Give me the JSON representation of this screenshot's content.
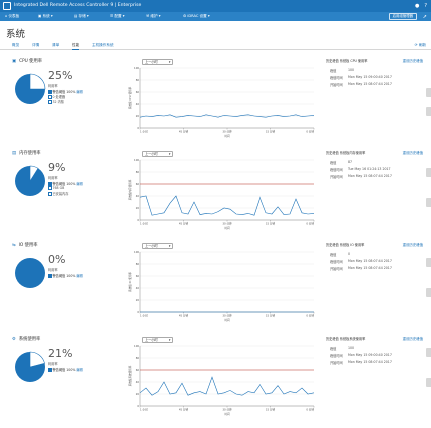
{
  "header": {
    "title": "Integrated Dell Remote Access Controller 9 | Enterprise",
    "icons": [
      "user-icon",
      "help-icon"
    ]
  },
  "menu": {
    "items": [
      "仪表板",
      "系统",
      "存储",
      "配置",
      "维护",
      "iDRAC 设置"
    ],
    "icons": [
      "home-icon",
      "system-icon",
      "storage-icon",
      "config-icon",
      "maintenance-icon",
      "settings-icon"
    ],
    "enable_group_manager": "启用组管理器",
    "pin": "pin-icon"
  },
  "page_title": "系统",
  "tabs": [
    "概览",
    "详情",
    "清单",
    "性能",
    "主机操作系统"
  ],
  "active_tab": "性能",
  "refresh_label": "刷新",
  "time_axis_label": "时间",
  "time_ticks": [
    "1 小时",
    "45 分钟",
    "30 分钟",
    "15 分钟",
    "0 分钟"
  ],
  "range_dropdown": "上一小时",
  "hist_labels": {
    "peak": "峰值",
    "peak_time": "峰值时间",
    "start_time": "开始时间"
  },
  "sections": [
    {
      "title": "CPU 使用率",
      "reset_label": "重设历史峰值",
      "percent": "25%",
      "percent_value": 25,
      "usage_label": "利用率",
      "warn_label": "警告阈值",
      "warn_value": "100%",
      "edit_label": "编辑",
      "legend": [
        "0 处理器",
        "32 内核"
      ],
      "y_axis": "系统板 CPU 使用率",
      "y_ticks": [
        "100",
        "80",
        "60",
        "40",
        "20",
        "0"
      ],
      "hist_title": "历史峰值 系统板 CPU 使用率",
      "peak": "100",
      "peak_time": "Mon May 15 09:00:40 2017",
      "start_time": "Mon May 15 08:07:44 2017",
      "has_threshold": false
    },
    {
      "title": "内存使用率",
      "reset_label": "重设历史峰值",
      "percent": "9%",
      "percent_value": 9,
      "usage_label": "利用率",
      "warn_label": "警告阈值",
      "warn_value": "100%",
      "edit_label": "编辑",
      "legend": [
        "768 GB",
        "已安装内存"
      ],
      "y_axis": "系统板内存使用率",
      "y_ticks": [
        "100",
        "80",
        "60",
        "40",
        "20",
        "0"
      ],
      "hist_title": "历史峰值 系统板内存使用率",
      "peak": "87",
      "peak_time": "Tue May 16 01:24:13 2017",
      "start_time": "Mon May 15 08:07:44 2017",
      "has_threshold": true
    },
    {
      "title": "IO 使用率",
      "reset_label": "重设历史峰值",
      "percent": "0%",
      "percent_value": 0,
      "usage_label": "利用率",
      "warn_label": "警告阈值",
      "warn_value": "100%",
      "edit_label": "编辑",
      "legend": [],
      "y_axis": "系统板 IO 使用率",
      "y_ticks": [
        "100",
        "80",
        "60",
        "40",
        "20",
        "0"
      ],
      "hist_title": "历史峰值 系统板 IO 使用率",
      "peak": "0",
      "peak_time": "Mon May 15 08:07:44 2017",
      "start_time": "Mon May 15 08:07:44 2017",
      "has_threshold": false
    },
    {
      "title": "系统使用率",
      "reset_label": "重设历史峰值",
      "percent": "21%",
      "percent_value": 21,
      "usage_label": "利用率",
      "warn_label": "警告阈值",
      "warn_value": "100%",
      "edit_label": "编辑",
      "legend": [],
      "y_axis": "系统板系统使用率",
      "y_ticks": [
        "100",
        "80",
        "60",
        "40",
        "20",
        "0"
      ],
      "hist_title": "历史峰值 系统板系统使用率",
      "peak": "100",
      "peak_time": "Mon May 15 09:00:40 2017",
      "start_time": "Mon May 15 08:07:44 2017",
      "has_threshold": true
    }
  ],
  "chart_data": [
    {
      "type": "line",
      "title": "CPU 使用率",
      "xlabel": "时间",
      "ylabel": "系统板 CPU 使用率",
      "x_ticks": [
        "1 小时",
        "45 分钟",
        "30 分钟",
        "15 分钟",
        "0 分钟"
      ],
      "ylim": [
        0,
        100
      ],
      "series": [
        {
          "name": "",
          "color": "#1d73b8",
          "values": [
            18,
            20,
            19,
            21,
            20,
            22,
            18,
            19,
            21,
            20,
            19,
            22,
            20,
            18,
            21,
            20,
            19,
            21,
            22,
            20,
            19,
            18,
            20,
            21,
            19,
            20,
            22,
            19,
            20,
            21
          ]
        }
      ]
    },
    {
      "type": "line",
      "title": "内存使用率",
      "xlabel": "时间",
      "ylabel": "系统板内存使用率",
      "x_ticks": [
        "1 小时",
        "45 分钟",
        "30 分钟",
        "15 分钟",
        "0 分钟"
      ],
      "ylim": [
        0,
        100
      ],
      "threshold": 60,
      "series": [
        {
          "name": "",
          "color": "#1d73b8",
          "values": [
            38,
            40,
            8,
            10,
            12,
            28,
            40,
            12,
            10,
            30,
            9,
            11,
            10,
            14,
            20,
            18,
            10,
            9,
            11,
            8,
            38,
            12,
            10,
            22,
            9,
            10,
            35,
            12,
            10,
            11
          ]
        }
      ]
    },
    {
      "type": "line",
      "title": "IO 使用率",
      "xlabel": "时间",
      "ylabel": "系统板 IO 使用率",
      "x_ticks": [
        "1 小时",
        "45 分钟",
        "30 分钟",
        "15 分钟",
        "0 分钟"
      ],
      "ylim": [
        0,
        100
      ],
      "series": [
        {
          "name": "",
          "color": "#1d73b8",
          "values": [
            0,
            0,
            0,
            0,
            0,
            0,
            0,
            0,
            0,
            0,
            0,
            0,
            0,
            0,
            0,
            0,
            0,
            0,
            0,
            0,
            0,
            0,
            0,
            0,
            0,
            0,
            0,
            0,
            0,
            0
          ]
        }
      ]
    },
    {
      "type": "line",
      "title": "系统使用率",
      "xlabel": "时间",
      "ylabel": "系统板系统使用率",
      "x_ticks": [
        "1 小时",
        "45 分钟",
        "30 分钟",
        "15 分钟",
        "0 分钟"
      ],
      "ylim": [
        0,
        100
      ],
      "threshold": 60,
      "series": [
        {
          "name": "",
          "color": "#1d73b8",
          "values": [
            22,
            30,
            18,
            24,
            40,
            20,
            22,
            38,
            18,
            22,
            24,
            20,
            48,
            20,
            22,
            26,
            20,
            18,
            24,
            22,
            36,
            20,
            22,
            34,
            20,
            24,
            22,
            30,
            20,
            22
          ]
        }
      ]
    }
  ]
}
